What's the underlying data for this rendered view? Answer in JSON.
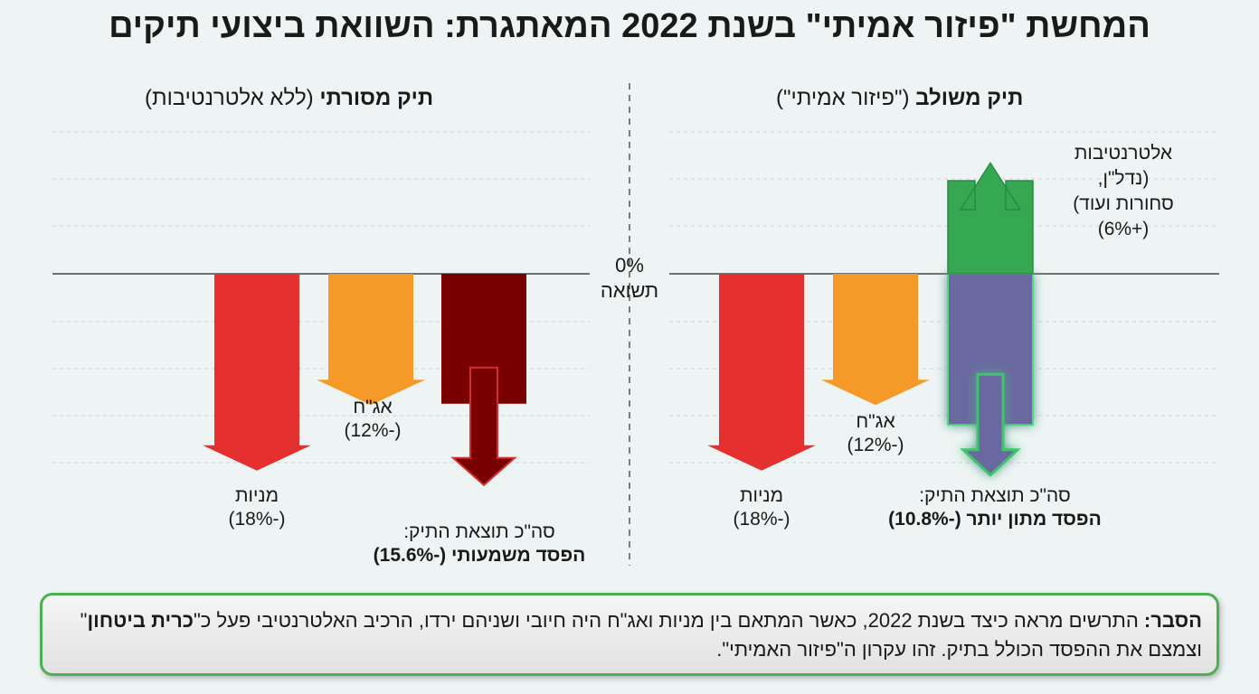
{
  "title": "המחשת \"פיזור אמיתי\" בשנת 2022 המאתגרת: השוואת ביצועי תיקים",
  "zero_label": {
    "pct": "0%",
    "word": "תשואה"
  },
  "panels": {
    "combined": {
      "title_bold": "תיק משולב",
      "title_rest": " (\"פיזור אמיתי\")",
      "stocks": {
        "name": "מניות",
        "value": "(-18%)"
      },
      "bonds": {
        "name": "אג\"ח",
        "value": "(-12%)"
      },
      "alternatives": {
        "line1": "אלטרנטיבות",
        "line2": "(נדל\"ן,",
        "line3": "סחורות ועוד)",
        "line4": "(+6%)"
      },
      "total": {
        "line1": "סה\"כ תוצאת התיק:",
        "line2": "הפסד מתון יותר (-10.8%)"
      }
    },
    "traditional": {
      "title_bold": "תיק מסורתי",
      "title_rest": " (ללא אלטרנטיבות)",
      "stocks": {
        "name": "מניות",
        "value": "(-18%)"
      },
      "bonds": {
        "name": "אג\"ח",
        "value": "(-12%)"
      },
      "total": {
        "line1": "סה\"כ תוצאת התיק:",
        "line2": "הפסד משמעותי (-15.6%)"
      }
    }
  },
  "note": {
    "label": "הסבר:",
    "text": " התרשים מראה כיצד בשנת 2022, כאשר המתאם בין מניות ואג\"ח היה חיובי ושניהם ירדו, הרכיב האלטרנטיבי פעל כ\"",
    "bold": "כרית ביטחון",
    "text2": "\" וצמצם את ההפסד הכולל בתיק. זהו עקרון ה\"פיזור האמיתי\"."
  },
  "colors": {
    "stocks": "#e53030",
    "bonds": "#f59a28",
    "alternatives": "#36a852",
    "total_combined": "#6a68a0",
    "total_traditional": "#7a0000",
    "note_border": "#4caf50"
  },
  "chart_data": [
    {
      "type": "bar",
      "title": "תיק משולב (\"פיזור אמיתי\")",
      "categories": [
        "מניות",
        "אג\"ח",
        "אלטרנטיבות",
        "סה\"כ תוצאת התיק"
      ],
      "values": [
        -18,
        -12,
        6,
        -10.8
      ],
      "ylabel": "תשואה"
    },
    {
      "type": "bar",
      "title": "תיק מסורתי (ללא אלטרנטיבות)",
      "categories": [
        "מניות",
        "אג\"ח",
        "סה\"כ תוצאת התיק"
      ],
      "values": [
        -18,
        -12,
        -15.6
      ],
      "ylabel": "תשואה"
    }
  ]
}
